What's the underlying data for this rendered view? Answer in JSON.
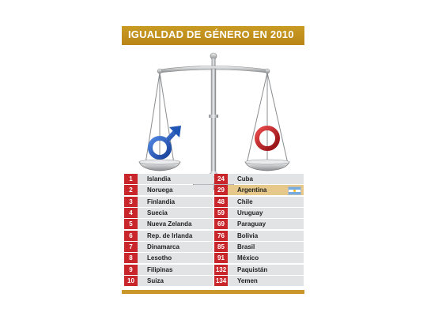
{
  "title": "IGUALDAD DE GÉNERO EN 2010",
  "symbols": {
    "left": "male-symbol-icon",
    "right": "female-symbol-icon",
    "male_color": "#1f56b5",
    "female_color": "#c0141b"
  },
  "colors": {
    "header": "#b98516",
    "rank_badge": "#c9262c",
    "row_bg": "#e1e3e5",
    "highlight": "#e6c98a"
  },
  "rankings_left": [
    {
      "rank": "1",
      "country": "Islandia"
    },
    {
      "rank": "2",
      "country": "Noruega"
    },
    {
      "rank": "3",
      "country": "Finlandia"
    },
    {
      "rank": "4",
      "country": "Suecia"
    },
    {
      "rank": "5",
      "country": "Nueva Zelanda"
    },
    {
      "rank": "6",
      "country": "Rep. de Irlanda"
    },
    {
      "rank": "7",
      "country": "Dinamarca"
    },
    {
      "rank": "8",
      "country": "Lesotho"
    },
    {
      "rank": "9",
      "country": "Filipinas"
    },
    {
      "rank": "10",
      "country": "Suiza"
    }
  ],
  "rankings_right": [
    {
      "rank": "24",
      "country": "Cuba"
    },
    {
      "rank": "29",
      "country": "Argentina",
      "highlight": true,
      "flag": "argentina-flag-icon"
    },
    {
      "rank": "48",
      "country": "Chile"
    },
    {
      "rank": "59",
      "country": "Uruguay"
    },
    {
      "rank": "69",
      "country": "Paraguay"
    },
    {
      "rank": "76",
      "country": "Bolivia"
    },
    {
      "rank": "85",
      "country": "Brasil"
    },
    {
      "rank": "91",
      "country": "México"
    },
    {
      "rank": "132",
      "country": "Paquistán"
    },
    {
      "rank": "134",
      "country": "Yemen"
    }
  ]
}
